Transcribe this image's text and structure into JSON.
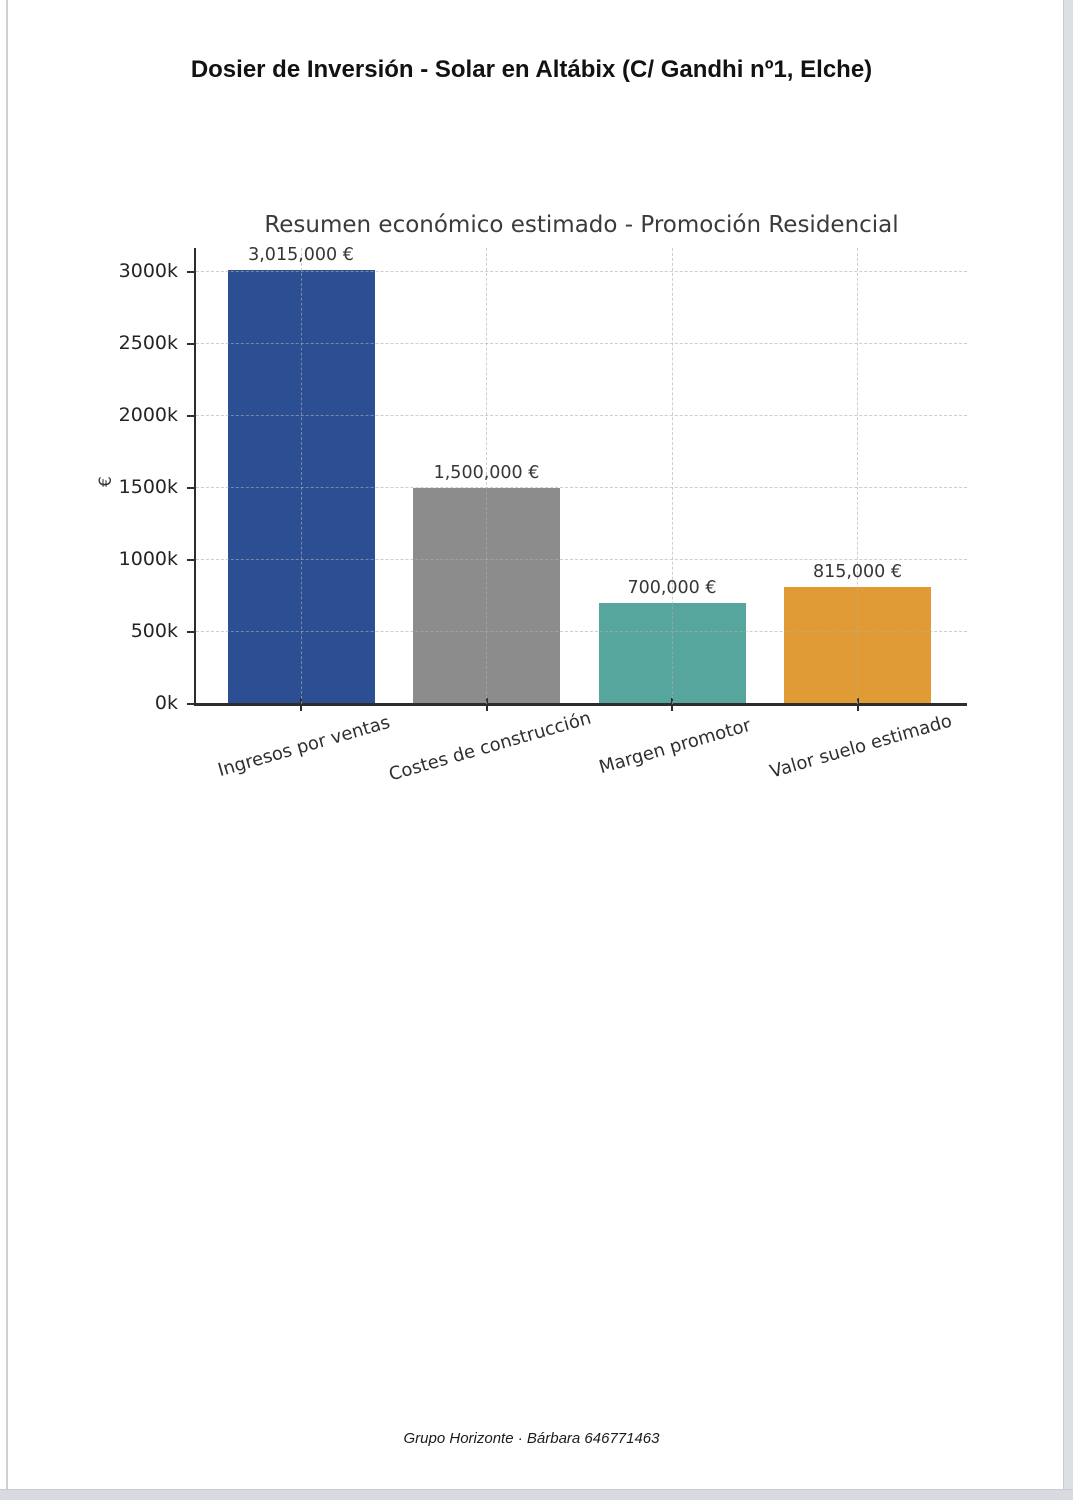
{
  "page": {
    "title": "Dosier de Inversión - Solar en Altábix (C/ Gandhi nº1, Elche)",
    "footer": "Grupo Horizonte · Bárbara 646771463"
  },
  "chart_data": {
    "type": "bar",
    "title": "Resumen económico estimado - Promoción Residencial",
    "xlabel": "",
    "ylabel": "€",
    "categories": [
      "Ingresos por ventas",
      "Costes de construcción",
      "Margen promotor",
      "Valor suelo estimado"
    ],
    "values": [
      3015000,
      1500000,
      700000,
      815000
    ],
    "value_labels": [
      "3,015,000 €",
      "1,500,000 €",
      "700,000 €",
      "815,000 €"
    ],
    "bar_colors": [
      "#2c4f94",
      "#8c8c8c",
      "#57a69e",
      "#e09b35"
    ],
    "ylim": [
      0,
      3165750
    ],
    "yticks": [
      0,
      500000,
      1000000,
      1500000,
      2000000,
      2500000,
      3000000
    ],
    "ytick_labels": [
      "0k",
      "500k",
      "1000k",
      "1500k",
      "2000k",
      "2500k",
      "3000k"
    ],
    "grid": true,
    "grid_style": "dashed",
    "legend": false
  }
}
